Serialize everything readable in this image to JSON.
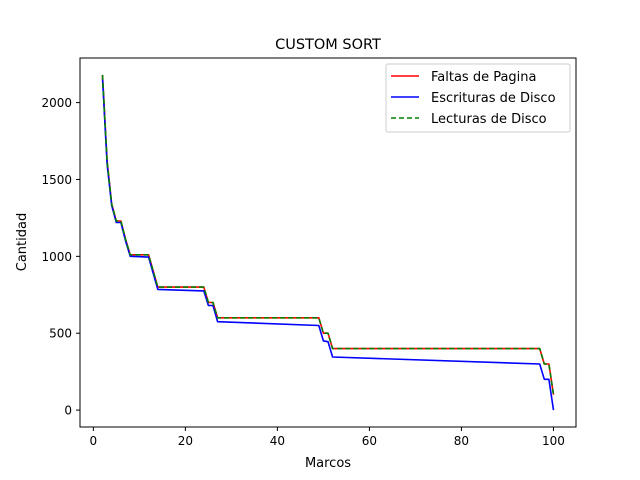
{
  "chart_data": {
    "type": "line",
    "title": "CUSTOM SORT",
    "xlabel": "Marcos",
    "ylabel": "Cantidad",
    "xlim": [
      -2.9,
      104.9
    ],
    "ylim": [
      -110,
      2290
    ],
    "xticks": [
      0,
      20,
      40,
      60,
      80,
      100
    ],
    "yticks": [
      0,
      500,
      1000,
      1500,
      2000
    ],
    "grid": false,
    "legend_position": "top-right",
    "series": [
      {
        "name": "Faltas de Pagina",
        "color": "#ff0000",
        "style": "solid",
        "points": [
          [
            2,
            2180
          ],
          [
            3,
            1620
          ],
          [
            4,
            1340
          ],
          [
            5,
            1230
          ],
          [
            6,
            1230
          ],
          [
            7,
            1110
          ],
          [
            8,
            1010
          ],
          [
            12,
            1010
          ],
          [
            14,
            800
          ],
          [
            24,
            800
          ],
          [
            25,
            700
          ],
          [
            26,
            700
          ],
          [
            27,
            600
          ],
          [
            49,
            600
          ],
          [
            50,
            500
          ],
          [
            51,
            500
          ],
          [
            52,
            400
          ],
          [
            97,
            400
          ],
          [
            98,
            300
          ],
          [
            99,
            300
          ],
          [
            100,
            100
          ]
        ]
      },
      {
        "name": "Escrituras de Disco",
        "color": "#0000ff",
        "style": "solid",
        "points": [
          [
            2,
            2160
          ],
          [
            3,
            1600
          ],
          [
            4,
            1330
          ],
          [
            5,
            1220
          ],
          [
            6,
            1220
          ],
          [
            7,
            1100
          ],
          [
            8,
            1000
          ],
          [
            12,
            995
          ],
          [
            14,
            785
          ],
          [
            24,
            775
          ],
          [
            25,
            680
          ],
          [
            26,
            680
          ],
          [
            27,
            575
          ],
          [
            49,
            550
          ],
          [
            50,
            450
          ],
          [
            51,
            445
          ],
          [
            52,
            345
          ],
          [
            97,
            300
          ],
          [
            98,
            200
          ],
          [
            99,
            200
          ],
          [
            100,
            0
          ]
        ]
      },
      {
        "name": "Lecturas de Disco",
        "color": "#008000",
        "style": "dashed",
        "points": [
          [
            2,
            2180
          ],
          [
            3,
            1620
          ],
          [
            4,
            1340
          ],
          [
            5,
            1230
          ],
          [
            6,
            1230
          ],
          [
            7,
            1110
          ],
          [
            8,
            1010
          ],
          [
            12,
            1010
          ],
          [
            14,
            800
          ],
          [
            24,
            800
          ],
          [
            25,
            700
          ],
          [
            26,
            700
          ],
          [
            27,
            600
          ],
          [
            49,
            600
          ],
          [
            50,
            500
          ],
          [
            51,
            500
          ],
          [
            52,
            400
          ],
          [
            97,
            400
          ],
          [
            98,
            300
          ],
          [
            99,
            300
          ],
          [
            100,
            100
          ]
        ]
      }
    ]
  }
}
